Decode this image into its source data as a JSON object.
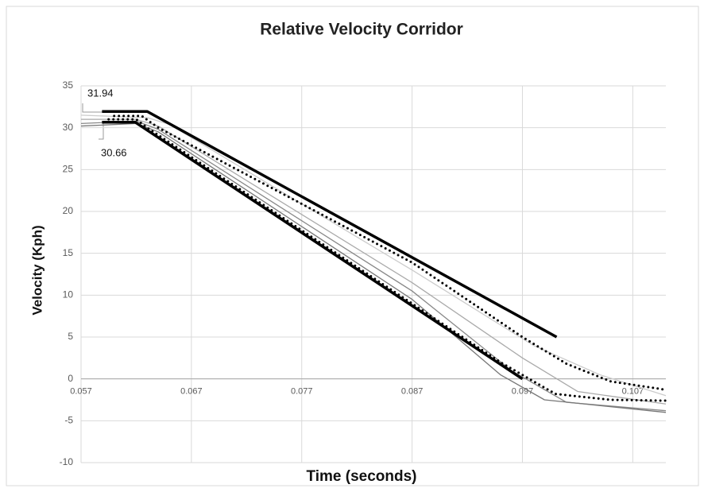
{
  "chart_data": {
    "type": "line",
    "title": "Relative Velocity Corridor",
    "x_label": "Time (seconds)",
    "y_label": "Velocity (Kph)",
    "xlim": [
      0.057,
      0.11
    ],
    "xticks": [
      0.057,
      0.067,
      0.077,
      0.087,
      0.097,
      0.107
    ],
    "ylim": [
      -10,
      35
    ],
    "yticks": [
      -10,
      -5,
      0,
      5,
      10,
      15,
      20,
      25,
      30,
      35
    ],
    "grid": true,
    "series": [
      {
        "color": "#000000",
        "style": "solid",
        "x": [
          0.0589,
          0.063,
          0.1001
        ],
        "values": [
          31.94,
          31.94,
          5
        ]
      },
      {
        "color": "#000000",
        "style": "solid",
        "x": [
          0.0589,
          0.0619,
          0.097
        ],
        "values": [
          30.66,
          30.66,
          0
        ]
      },
      {
        "color": "#aaaaaa",
        "style": "thin",
        "x": [
          0.057,
          0.062,
          0.064,
          0.087,
          0.097,
          0.102,
          0.11
        ],
        "values": [
          31.0,
          31.0,
          30.2,
          11.5,
          2.5,
          -1.5,
          -3.0
        ]
      },
      {
        "color": "#888888",
        "style": "thin",
        "x": [
          0.057,
          0.062,
          0.064,
          0.087,
          0.096,
          0.101,
          0.11
        ],
        "values": [
          30.5,
          30.8,
          29.8,
          10.5,
          1.0,
          -2.8,
          -3.8
        ]
      },
      {
        "color": "#cccccc",
        "style": "thin",
        "x": [
          0.057,
          0.063,
          0.065,
          0.087,
          0.098,
          0.104,
          0.11
        ],
        "values": [
          31.5,
          31.2,
          30.4,
          13.0,
          4.0,
          0.5,
          -2.0
        ]
      },
      {
        "color": "#777777",
        "style": "thin",
        "x": [
          0.057,
          0.062,
          0.064,
          0.087,
          0.095,
          0.099,
          0.11
        ],
        "values": [
          30.2,
          30.5,
          29.5,
          9.5,
          0.5,
          -2.5,
          -4.0
        ]
      },
      {
        "color": "#000000",
        "style": "dotted",
        "x": [
          0.06,
          0.0625,
          0.064,
          0.087,
          0.097,
          0.101,
          0.105,
          0.11
        ],
        "values": [
          31.4,
          31.4,
          30.0,
          13.9,
          5.0,
          1.8,
          -0.3,
          -1.3
        ]
      },
      {
        "color": "#000000",
        "style": "dotted",
        "x": [
          0.0595,
          0.062,
          0.063,
          0.087,
          0.095,
          0.1,
          0.105,
          0.11
        ],
        "values": [
          31.0,
          31.0,
          30.0,
          9.0,
          2.0,
          -1.8,
          -2.5,
          -2.6
        ]
      }
    ]
  }
}
